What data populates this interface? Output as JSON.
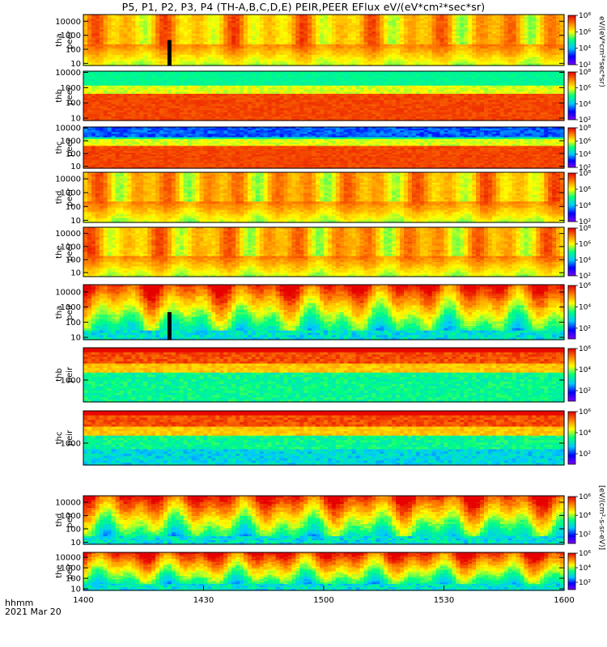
{
  "chart_data": {
    "type": "heatmap",
    "title": "P5, P1, P2, P3, P4 (TH-A,B,C,D,E) PEIR,PEER EFlux eV/(eV*cm²*sec*sr)",
    "x_ticks": [
      "1400",
      "1430",
      "1500",
      "1530",
      "1600"
    ],
    "x_range_minutes": [
      0,
      120
    ],
    "x_label_lines": [
      "hhmm",
      "2021 Mar 20"
    ],
    "colorbar_ticks": [
      "10²",
      "10⁴",
      "10⁶",
      "10⁸"
    ],
    "colorbar_label_electron": "eV/(eV*cm²*sec*sr)",
    "colorbar_label_ion": "[eV/(cm²-s-sr-eV)]",
    "y_scale": "log",
    "panels": [
      {
        "probe": "tha",
        "species": "peer",
        "y_label": [
          "tha",
          "peer"
        ],
        "y_ticks": [
          "10000",
          "1000",
          "100",
          "10"
        ],
        "y_range": [
          7,
          30000
        ],
        "flux_range": [
          2,
          8
        ]
      },
      {
        "probe": "thb",
        "species": "peer",
        "y_label": [
          "thb",
          "peer"
        ],
        "y_ticks": [
          "10000",
          "1000",
          "100",
          "10"
        ],
        "y_range": [
          7,
          12000
        ],
        "flux_range": [
          2,
          8
        ]
      },
      {
        "probe": "thc",
        "species": "peer",
        "y_label": [
          "thc",
          "peer"
        ],
        "y_ticks": [
          "10000",
          "1000",
          "100",
          "10"
        ],
        "y_range": [
          7,
          12000
        ],
        "flux_range": [
          2,
          8
        ]
      },
      {
        "probe": "thd",
        "species": "peer",
        "y_label": [
          "thd",
          "peer"
        ],
        "y_ticks": [
          "10000",
          "1000",
          "100",
          "10"
        ],
        "y_range": [
          7,
          30000
        ],
        "flux_range": [
          2,
          8
        ]
      },
      {
        "probe": "the",
        "species": "peer",
        "y_label": [
          "the",
          "peer"
        ],
        "y_ticks": [
          "10000",
          "1000",
          "100",
          "10"
        ],
        "y_range": [
          5,
          30000
        ],
        "flux_range": [
          2,
          8
        ]
      },
      {
        "probe": "tha",
        "species": "peir",
        "y_label": [
          "tha",
          "peir"
        ],
        "y_ticks": [
          "10000",
          "1000",
          "100",
          "10"
        ],
        "y_range": [
          7,
          30000
        ],
        "flux_range": [
          1,
          6
        ]
      },
      {
        "probe": "thb",
        "species": "peir",
        "y_label": [
          "thb",
          "peir"
        ],
        "y_ticks": [
          "1000"
        ],
        "y_range": [
          100,
          30000
        ],
        "flux_range": [
          1,
          6
        ]
      },
      {
        "probe": "thc",
        "species": "peir",
        "y_label": [
          "thc",
          "peir"
        ],
        "y_ticks": [
          "1000"
        ],
        "y_range": [
          100,
          30000
        ],
        "flux_range": [
          1,
          6
        ]
      },
      {
        "probe": "thd",
        "species": "peir",
        "y_label": [
          "thd",
          "peir"
        ],
        "y_ticks": [
          "10000",
          "1000",
          "100",
          "10"
        ],
        "y_range": [
          7,
          30000
        ],
        "flux_range": [
          1,
          6
        ]
      },
      {
        "probe": "the",
        "species": "peir",
        "y_label": [
          "the",
          "peir"
        ],
        "y_ticks": [
          "10000",
          "1000",
          "100",
          "10"
        ],
        "y_range": [
          7,
          30000
        ],
        "flux_range": [
          1,
          6
        ]
      }
    ],
    "colors": {
      "scale": [
        "#7f00ff",
        "#0000ff",
        "#00c8ff",
        "#00ff80",
        "#ffff00",
        "#ff8000",
        "#e60000"
      ],
      "no_data": "#ffffff",
      "fill_gap": "#000000"
    },
    "notes_visible": {
      "data_gap_minute_tha": 21
    }
  }
}
